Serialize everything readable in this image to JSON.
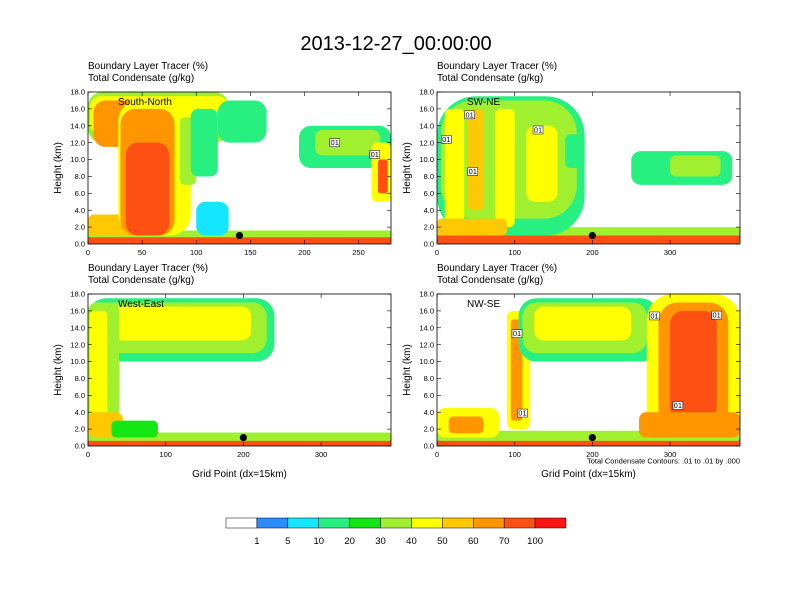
{
  "figure_title": "2013-12-27_00:00:00",
  "colors": {
    "levels": [
      "#ffffff",
      "#2a8cff",
      "#14e6ff",
      "#28f080",
      "#14e614",
      "#a0f030",
      "#ffff00",
      "#ffc800",
      "#ff9600",
      "#ff5014",
      "#ff1414"
    ],
    "contour": "#000000",
    "point": "#000000"
  },
  "chart_data": [
    {
      "type": "heatmap",
      "name": "South-North",
      "title_line1": "Boundary Layer Tracer    (%)",
      "title_line2": "Total Condensate    (g/kg)",
      "label": "South-North",
      "ylabel": "Height (km)",
      "xlabel": "",
      "xlim": [
        0,
        280
      ],
      "ylim": [
        0,
        18
      ],
      "xticks": [
        0,
        50,
        100,
        150,
        200,
        250
      ],
      "yticks": [
        "0.0",
        "2.0",
        "4.0",
        "6.0",
        "8.0",
        "10.0",
        "12.0",
        "14.0",
        "16.0",
        "18.0"
      ],
      "marker": {
        "x": 140,
        "y": 1.0
      },
      "contour_labels": [
        {
          "text": "01",
          "x": 228,
          "y": 12.0
        },
        {
          "text": "01",
          "x": 265,
          "y": 10.6
        }
      ],
      "blobs": [
        {
          "x0": 0,
          "x1": 280,
          "y0": 0,
          "y1": 1.0,
          "v": 75
        },
        {
          "x0": 0,
          "x1": 280,
          "y0": 0.8,
          "y1": 1.6,
          "v": 35
        },
        {
          "x0": 0,
          "x1": 60,
          "y0": 1,
          "y1": 3.5,
          "v": 55
        },
        {
          "x0": 0,
          "x1": 130,
          "y0": 12,
          "y1": 18,
          "v": 30
        },
        {
          "x0": 2,
          "x1": 130,
          "y0": 13,
          "y1": 17.5,
          "v": 45
        },
        {
          "x0": 5,
          "x1": 45,
          "y0": 11.5,
          "y1": 17,
          "v": 62
        },
        {
          "x0": 60,
          "x1": 80,
          "y0": 10,
          "y1": 17,
          "v": 55
        },
        {
          "x0": 28,
          "x1": 95,
          "y0": 1,
          "y1": 17,
          "v": 45
        },
        {
          "x0": 30,
          "x1": 80,
          "y0": 1,
          "y1": 16,
          "v": 60
        },
        {
          "x0": 35,
          "x1": 75,
          "y0": 1,
          "y1": 12,
          "v": 70
        },
        {
          "x0": 40,
          "x1": 70,
          "y0": 1,
          "y1": 6,
          "v": 85
        },
        {
          "x0": 85,
          "x1": 100,
          "y0": 7,
          "y1": 15,
          "v": 35
        },
        {
          "x0": 95,
          "x1": 120,
          "y0": 8,
          "y1": 16,
          "v": 15
        },
        {
          "x0": 120,
          "x1": 165,
          "y0": 12,
          "y1": 17,
          "v": 12
        },
        {
          "x0": 100,
          "x1": 130,
          "y0": 1,
          "y1": 5,
          "v": 5
        },
        {
          "x0": 195,
          "x1": 280,
          "y0": 9,
          "y1": 14,
          "v": 15
        },
        {
          "x0": 210,
          "x1": 270,
          "y0": 10.5,
          "y1": 13.5,
          "v": 35
        },
        {
          "x0": 262,
          "x1": 280,
          "y0": 5,
          "y1": 12,
          "v": 45
        },
        {
          "x0": 268,
          "x1": 277,
          "y0": 6,
          "y1": 10,
          "v": 75
        }
      ]
    },
    {
      "type": "heatmap",
      "name": "SW-NE",
      "title_line1": "Boundary Layer Tracer    (%)",
      "title_line2": "Total Condensate    (g/kg)",
      "label": "SW-NE",
      "ylabel": "Height (km)",
      "xlabel": "",
      "xlim": [
        0,
        390
      ],
      "ylim": [
        0,
        18
      ],
      "xticks": [
        0,
        100,
        200,
        300
      ],
      "yticks": [
        "0.0",
        "2.0",
        "4.0",
        "6.0",
        "8.0",
        "10.0",
        "12.0",
        "14.0",
        "16.0",
        "18.0"
      ],
      "marker": {
        "x": 200,
        "y": 1.0
      },
      "contour_labels": [
        {
          "text": "01",
          "x": 42,
          "y": 15.3
        },
        {
          "text": "01",
          "x": 12,
          "y": 12.4
        },
        {
          "text": "01",
          "x": 46,
          "y": 8.6
        },
        {
          "text": "01",
          "x": 130,
          "y": 13.5
        }
      ],
      "blobs": [
        {
          "x0": 0,
          "x1": 390,
          "y0": 0,
          "y1": 1.2,
          "v": 75
        },
        {
          "x0": 0,
          "x1": 390,
          "y0": 1,
          "y1": 2,
          "v": 35
        },
        {
          "x0": 0,
          "x1": 190,
          "y0": 1,
          "y1": 17.5,
          "v": 12
        },
        {
          "x0": 5,
          "x1": 180,
          "y0": 3,
          "y1": 17,
          "v": 30
        },
        {
          "x0": 10,
          "x1": 35,
          "y0": 2,
          "y1": 16,
          "v": 45
        },
        {
          "x0": 40,
          "x1": 60,
          "y0": 4,
          "y1": 16,
          "v": 55
        },
        {
          "x0": 75,
          "x1": 100,
          "y0": 2,
          "y1": 16,
          "v": 45
        },
        {
          "x0": 115,
          "x1": 155,
          "y0": 5,
          "y1": 14,
          "v": 40
        },
        {
          "x0": 165,
          "x1": 190,
          "y0": 9,
          "y1": 13,
          "v": 15
        },
        {
          "x0": 0,
          "x1": 90,
          "y0": 1,
          "y1": 3,
          "v": 55
        },
        {
          "x0": 250,
          "x1": 380,
          "y0": 7,
          "y1": 11,
          "v": 15
        },
        {
          "x0": 300,
          "x1": 365,
          "y0": 8,
          "y1": 10.5,
          "v": 35
        }
      ]
    },
    {
      "type": "heatmap",
      "name": "West-East",
      "title_line1": "Boundary Layer Tracer    (%)",
      "title_line2": "Total Condensate    (g/kg)",
      "label": "West-East",
      "ylabel": "Height (km)",
      "xlabel": "Grid Point (dx=15km)",
      "xlim": [
        0,
        390
      ],
      "ylim": [
        0,
        18
      ],
      "xticks": [
        0,
        100,
        200,
        300
      ],
      "yticks": [
        "0.0",
        "2.0",
        "4.0",
        "6.0",
        "8.0",
        "10.0",
        "12.0",
        "14.0",
        "16.0",
        "18.0"
      ],
      "marker": {
        "x": 200,
        "y": 1.0
      },
      "contour_labels": [],
      "blobs": [
        {
          "x0": 0,
          "x1": 390,
          "y0": 0,
          "y1": 1.0,
          "v": 75
        },
        {
          "x0": 0,
          "x1": 390,
          "y0": 0.6,
          "y1": 1.6,
          "v": 35
        },
        {
          "x0": 0,
          "x1": 240,
          "y0": 10,
          "y1": 17.5,
          "v": 15
        },
        {
          "x0": 0,
          "x1": 230,
          "y0": 11,
          "y1": 17,
          "v": 30
        },
        {
          "x0": 5,
          "x1": 210,
          "y0": 12.5,
          "y1": 16.5,
          "v": 45
        },
        {
          "x0": 0,
          "x1": 40,
          "y0": 1,
          "y1": 17,
          "v": 30
        },
        {
          "x0": 2,
          "x1": 25,
          "y0": 3,
          "y1": 16,
          "v": 45
        },
        {
          "x0": 0,
          "x1": 45,
          "y0": 1,
          "y1": 4,
          "v": 55
        },
        {
          "x0": 30,
          "x1": 90,
          "y0": 1,
          "y1": 3,
          "v": 25
        }
      ]
    },
    {
      "type": "heatmap",
      "name": "NW-SE",
      "title_line1": "Boundary Layer Tracer    (%)",
      "title_line2": "Total Condensate    (g/kg)",
      "label": "NW-SE",
      "ylabel": "Height (km)",
      "xlabel": "Grid Point (dx=15km)",
      "xlim": [
        0,
        390
      ],
      "ylim": [
        0,
        18
      ],
      "xticks": [
        0,
        100,
        200,
        300
      ],
      "yticks": [
        "0.0",
        "2.0",
        "4.0",
        "6.0",
        "8.0",
        "10.0",
        "12.0",
        "14.0",
        "16.0",
        "18.0"
      ],
      "marker": {
        "x": 200,
        "y": 1.0
      },
      "contour_labels": [
        {
          "text": "01",
          "x": 103,
          "y": 13.3
        },
        {
          "text": "01",
          "x": 110,
          "y": 3.9
        },
        {
          "text": "01",
          "x": 280,
          "y": 15.4
        },
        {
          "text": "01",
          "x": 360,
          "y": 15.5
        },
        {
          "text": "01",
          "x": 310,
          "y": 4.8
        }
      ],
      "blobs": [
        {
          "x0": 0,
          "x1": 390,
          "y0": 0,
          "y1": 1.0,
          "v": 75
        },
        {
          "x0": 0,
          "x1": 390,
          "y0": 0.6,
          "y1": 1.8,
          "v": 35
        },
        {
          "x0": 0,
          "x1": 80,
          "y0": 1,
          "y1": 4.5,
          "v": 45
        },
        {
          "x0": 15,
          "x1": 60,
          "y0": 1.5,
          "y1": 3.5,
          "v": 65
        },
        {
          "x0": 90,
          "x1": 120,
          "y0": 2,
          "y1": 16,
          "v": 45
        },
        {
          "x0": 95,
          "x1": 110,
          "y0": 3,
          "y1": 15,
          "v": 60
        },
        {
          "x0": 105,
          "x1": 285,
          "y0": 10,
          "y1": 17.5,
          "v": 15
        },
        {
          "x0": 110,
          "x1": 270,
          "y0": 11,
          "y1": 17,
          "v": 30
        },
        {
          "x0": 125,
          "x1": 250,
          "y0": 12.5,
          "y1": 16.5,
          "v": 45
        },
        {
          "x0": 270,
          "x1": 390,
          "y0": 1,
          "y1": 18,
          "v": 45
        },
        {
          "x0": 285,
          "x1": 375,
          "y0": 2,
          "y1": 17,
          "v": 60
        },
        {
          "x0": 300,
          "x1": 360,
          "y0": 3,
          "y1": 16,
          "v": 72
        },
        {
          "x0": 315,
          "x1": 345,
          "y0": 4,
          "y1": 14,
          "v": 85
        },
        {
          "x0": 260,
          "x1": 390,
          "y0": 1,
          "y1": 4,
          "v": 60
        }
      ]
    }
  ],
  "footnote": "Total Condensate Contours: .01 to .01 by .000",
  "colorbar": {
    "labels": [
      "1",
      "5",
      "10",
      "20",
      "30",
      "40",
      "50",
      "60",
      "70",
      "100"
    ]
  }
}
